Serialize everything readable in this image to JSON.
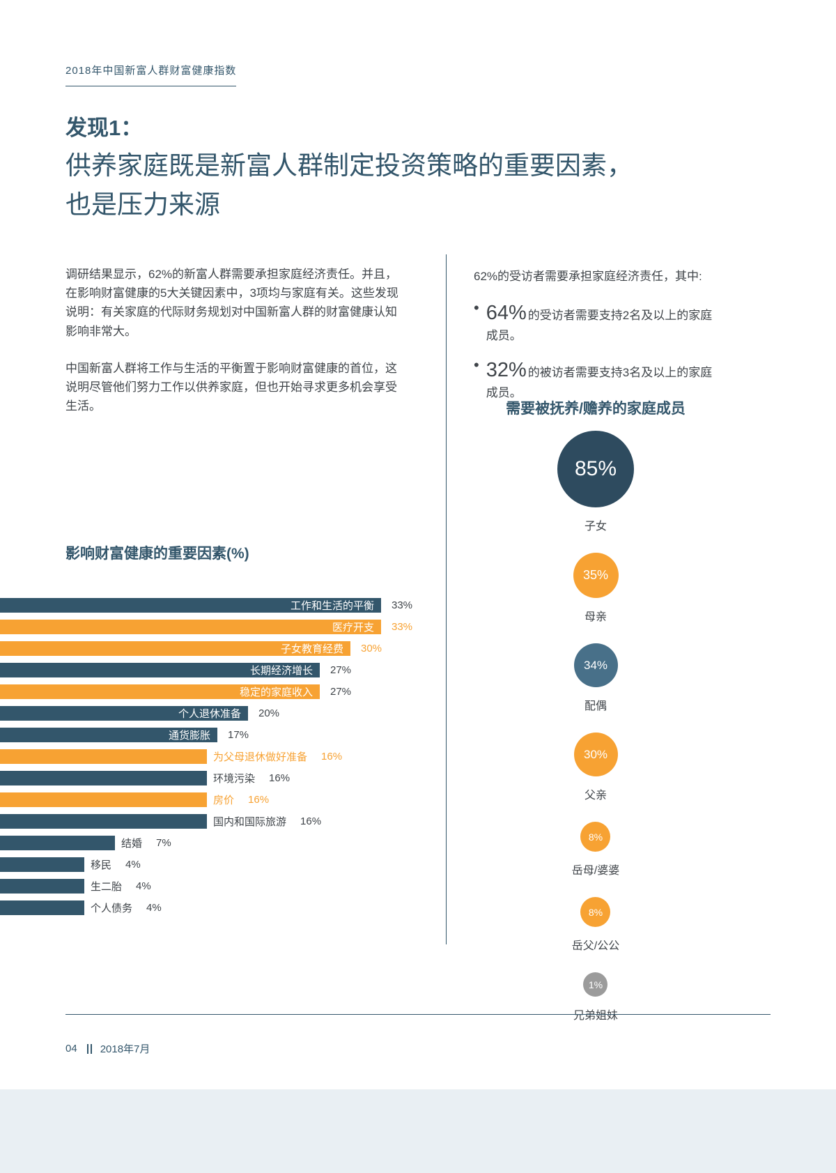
{
  "page": {
    "header": "2018年中国新富人群财富健康指数",
    "finding": "发现1：",
    "title": "供养家庭既是新富人群制定投资策略的重要因素，\n也是压力来源",
    "footer_page": "04",
    "footer_date": "2018年7月"
  },
  "intro": {
    "paragraph1": "调研结果显示，62%的新富人群需要承担家庭经济责任。并且，在影响财富健康的5大关键因素中，3项均与家庭有关。这些发现说明：有关家庭的代际财务规划对中国新富人群的财富健康认知影响非常大。",
    "paragraph2": "中国新富人群将工作与生活的平衡置于影响财富健康的首位，这说明尽管他们努力工作以供养家庭，但也开始寻求更多机会享受生活。"
  },
  "stats": {
    "lead": "62%的受访者需要承担家庭经济责任，其中:",
    "bullet_icon": "•",
    "bullets": [
      {
        "value": "64%",
        "text": "的受访者需要支持2名及以上的家庭成员。"
      },
      {
        "value": "32%",
        "text": "的被访者需要支持3名及以上的家庭成员。"
      }
    ]
  },
  "colors": {
    "dark": "#33566B",
    "darker": "#2E4B5F",
    "slate": "#487089",
    "orange": "#F7A233",
    "gray": "#9B9B9B",
    "text": "#3F4449",
    "band": "#E9EFF3"
  },
  "chart_data": [
    {
      "type": "bar",
      "orientation": "horizontal",
      "title": "影响财富健康的重要因素(%)",
      "xlabel": "",
      "ylabel": "",
      "xlim": [
        0,
        35
      ],
      "grid": false,
      "legend": "none",
      "categories": [
        "工作和生活的平衡",
        "医疗开支",
        "子女教育经费",
        "长期经济增长",
        "稳定的家庭收入",
        "个人退休准备",
        "通货膨胀",
        "为父母退休做好准备",
        "环境污染",
        "房价",
        "国内和国际旅游",
        "结婚",
        "移民",
        "生二胎",
        "个人债务"
      ],
      "values": [
        33,
        33,
        30,
        27,
        27,
        20,
        17,
        16,
        16,
        16,
        16,
        7,
        4,
        4,
        4
      ],
      "bars": [
        {
          "label": "工作和生活的平衡",
          "value": 33,
          "color": "dark",
          "label_inside": true,
          "value_color": "text"
        },
        {
          "label": "医疗开支",
          "value": 33,
          "color": "orange",
          "label_inside": true,
          "value_color": "orange"
        },
        {
          "label": "子女教育经费",
          "value": 30,
          "color": "orange",
          "label_inside": true,
          "value_color": "orange"
        },
        {
          "label": "长期经济增长",
          "value": 27,
          "color": "dark",
          "label_inside": true,
          "value_color": "text"
        },
        {
          "label": "稳定的家庭收入",
          "value": 27,
          "color": "orange",
          "label_inside": true,
          "value_color": "text"
        },
        {
          "label": "个人退休准备",
          "value": 20,
          "color": "dark",
          "label_inside": true,
          "value_color": "text"
        },
        {
          "label": "通货膨胀",
          "value": 17,
          "color": "dark",
          "label_inside": true,
          "value_color": "text"
        },
        {
          "label": "为父母退休做好准备",
          "value": 16,
          "color": "orange",
          "label_inside": false,
          "value_color": "orange"
        },
        {
          "label": "环境污染",
          "value": 16,
          "color": "dark",
          "label_inside": false,
          "value_color": "text"
        },
        {
          "label": "房价",
          "value": 16,
          "color": "orange",
          "label_inside": false,
          "value_color": "orange"
        },
        {
          "label": "国内和国际旅游",
          "value": 16,
          "color": "dark",
          "label_inside": false,
          "value_color": "text"
        },
        {
          "label": "结婚",
          "value": 7,
          "color": "dark",
          "label_inside": false,
          "value_color": "text"
        },
        {
          "label": "移民",
          "value": 4,
          "color": "dark",
          "label_inside": false,
          "value_color": "text"
        },
        {
          "label": "生二胎",
          "value": 4,
          "color": "dark",
          "label_inside": false,
          "value_color": "text"
        },
        {
          "label": "个人债务",
          "value": 4,
          "color": "dark",
          "label_inside": false,
          "value_color": "text"
        }
      ]
    },
    {
      "type": "bubble",
      "title": "需要被抚养/赡养的家庭成员",
      "items": [
        {
          "label": "子女",
          "value": 85,
          "display": "85%",
          "color": "darker",
          "diameter": 110
        },
        {
          "label": "母亲",
          "value": 35,
          "display": "35%",
          "color": "orange",
          "diameter": 65
        },
        {
          "label": "配偶",
          "value": 34,
          "display": "34%",
          "color": "slate",
          "diameter": 63
        },
        {
          "label": "父亲",
          "value": 30,
          "display": "30%",
          "color": "orange",
          "diameter": 63
        },
        {
          "label": "岳母/婆婆",
          "value": 8,
          "display": "8%",
          "color": "orange",
          "diameter": 43
        },
        {
          "label": "岳父/公公",
          "value": 8,
          "display": "8%",
          "color": "orange",
          "diameter": 43
        },
        {
          "label": "兄弟姐妹",
          "value": 1,
          "display": "1%",
          "color": "gray",
          "diameter": 35
        }
      ]
    }
  ]
}
